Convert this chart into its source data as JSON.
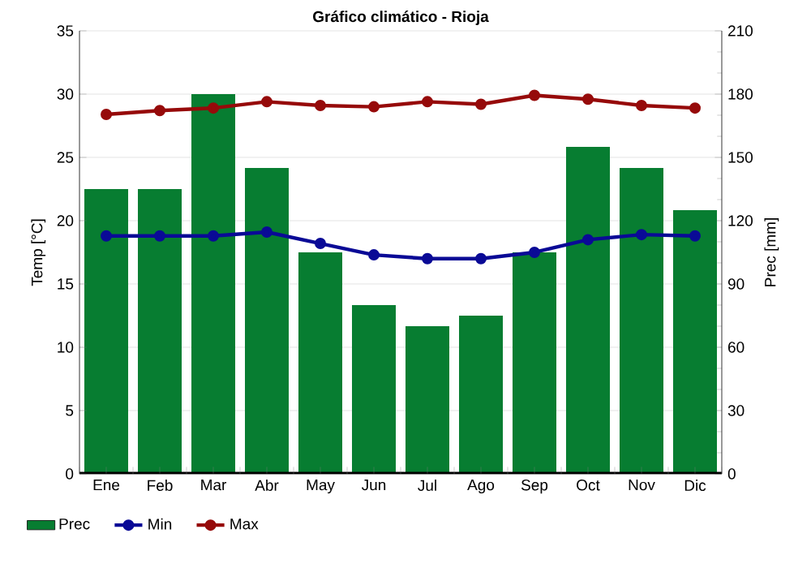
{
  "chart_data": {
    "type": "line",
    "title": "Gráfico climático - Rioja",
    "ylabel": "Temp [°C]",
    "y2label": "Prec [mm]",
    "categories": [
      "Ene",
      "Feb",
      "Mar",
      "Abr",
      "May",
      "Jun",
      "Jul",
      "Ago",
      "Sep",
      "Oct",
      "Nov",
      "Dic"
    ],
    "series": [
      {
        "name": "Prec",
        "type": "bar",
        "axis": "y2",
        "color": "#077d31",
        "values": [
          135,
          135,
          180,
          145,
          105,
          80,
          70,
          75,
          105,
          155,
          145,
          125
        ]
      },
      {
        "name": "Min",
        "axis": "y",
        "color": "#0a0a96",
        "values": [
          18.8,
          18.8,
          18.8,
          19.1,
          18.2,
          17.3,
          17.0,
          17.0,
          17.5,
          18.5,
          18.9,
          18.8
        ]
      },
      {
        "name": "Max",
        "axis": "y",
        "color": "#960a0a",
        "values": [
          28.4,
          28.7,
          28.9,
          29.4,
          29.1,
          29.0,
          29.4,
          29.2,
          29.9,
          29.6,
          29.1,
          28.9
        ]
      }
    ],
    "ylim": [
      0,
      35
    ],
    "yticks": [
      0,
      5,
      10,
      15,
      20,
      25,
      30,
      35
    ],
    "y2lim": [
      0,
      210
    ],
    "y2ticks": [
      0,
      30,
      60,
      90,
      120,
      150,
      180,
      210
    ],
    "grid": true,
    "legend": "bottom",
    "marker": "circle",
    "line_style": "solid"
  }
}
